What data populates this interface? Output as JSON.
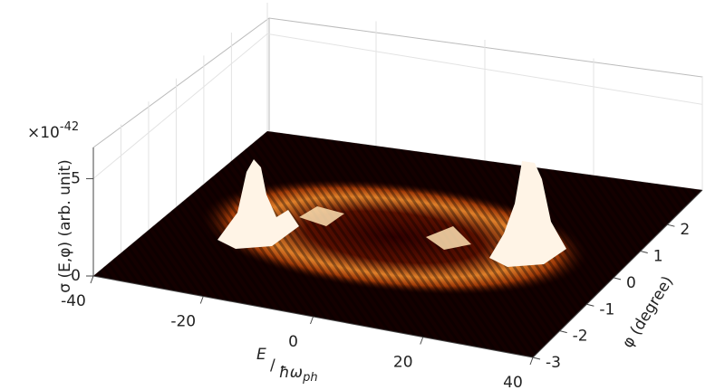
{
  "chart_data": {
    "type": "surface",
    "x_label": {
      "main": "E",
      "denominator": "ħω",
      "subscript": "ph"
    },
    "y_label": "φ (degree)",
    "z_label": "σ (E,φ) (arb. unit)",
    "z_multiplier": {
      "base": "×10",
      "exponent": "-42"
    },
    "xlim": [
      -40,
      40
    ],
    "xticks": [
      -40,
      -20,
      0,
      20,
      40
    ],
    "ylim": [
      -3,
      3.3
    ],
    "yticks": [
      -3,
      -2,
      -1,
      0,
      1,
      2
    ],
    "zlim": [
      0,
      6.6
    ],
    "zticks": [
      0,
      5
    ],
    "grid": true,
    "colormap": "hot"
  }
}
